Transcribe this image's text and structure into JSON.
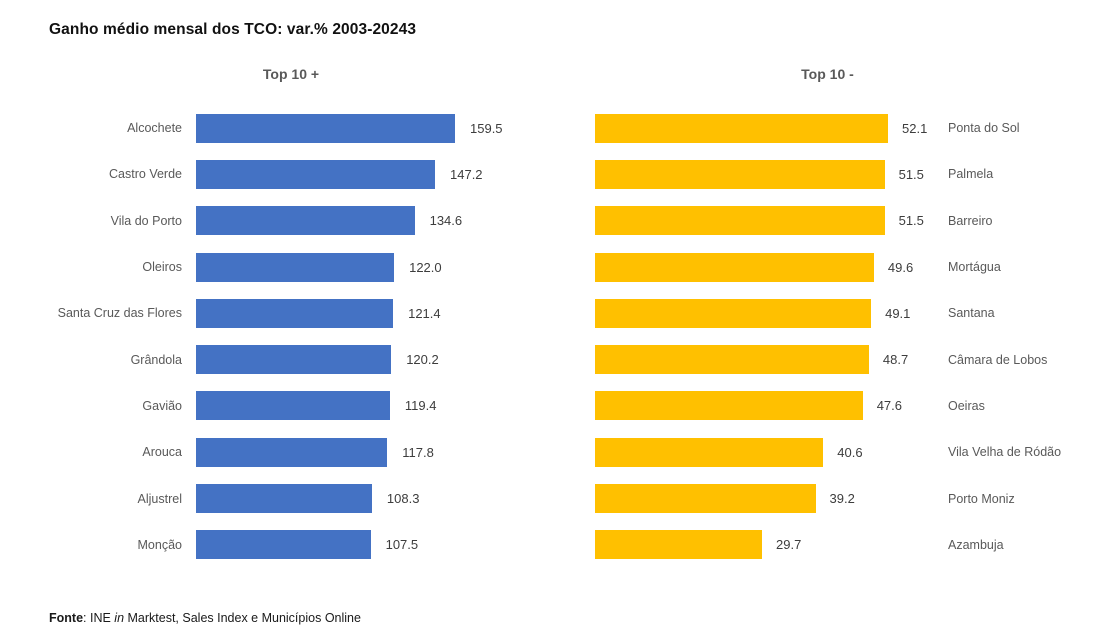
{
  "title": "Ganho médio mensal dos TCO: var.% 2003-20243",
  "footer": {
    "label": "Fonte",
    "sep": ": ",
    "pre": "INE ",
    "italic": "in",
    "rest": " Marktest, Sales Index e Municípios Online"
  },
  "colors": {
    "positive_bar": "#4472C4",
    "negative_bar": "#FFC000",
    "header_text": "#595959",
    "label_text": "#595959",
    "value_text": "#3d3d3d"
  },
  "chart_data": [
    {
      "type": "bar",
      "orientation": "horizontal",
      "title": "Top 10 +",
      "labels_side": "left",
      "bar_color": "#4472C4",
      "xlim": [
        0,
        160
      ],
      "grid": false,
      "value_decimals": 1,
      "categories": [
        "Alcochete",
        "Castro Verde",
        "Vila do Porto",
        "Oleiros",
        "Santa Cruz das Flores",
        "Grândola",
        "Gavião",
        "Arouca",
        "Aljustrel",
        "Monção"
      ],
      "values": [
        159.5,
        147.2,
        134.6,
        122.0,
        121.4,
        120.2,
        119.4,
        117.8,
        108.3,
        107.5
      ]
    },
    {
      "type": "bar",
      "orientation": "horizontal",
      "title": "Top 10 -",
      "labels_side": "right",
      "bar_color": "#FFC000",
      "xlim": [
        0,
        55
      ],
      "grid": false,
      "value_decimals": 1,
      "categories": [
        "Ponta do Sol",
        "Palmela",
        "Barreiro",
        "Mortágua",
        "Santana",
        "Câmara de Lobos",
        "Oeiras",
        "Vila Velha de Ródão",
        "Porto Moniz",
        "Azambuja"
      ],
      "values": [
        52.1,
        51.5,
        51.5,
        49.6,
        49.1,
        48.7,
        47.6,
        40.6,
        39.2,
        29.7
      ]
    }
  ]
}
